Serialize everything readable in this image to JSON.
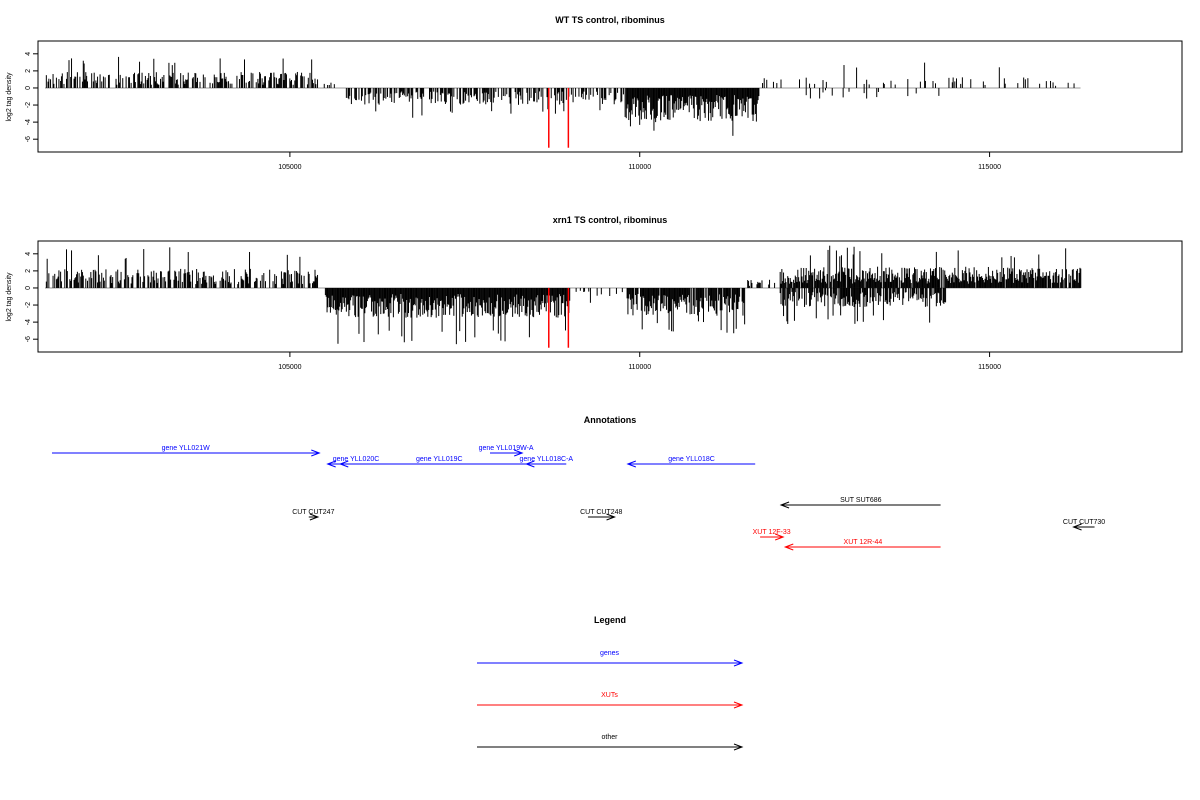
{
  "chart_data": [
    {
      "type": "bar",
      "title": "WT TS control, ribominus",
      "ylabel": "log2 tag density",
      "xlim": [
        101400,
        117750
      ],
      "ylim": [
        -7.5,
        5.5
      ],
      "x_ticks": [
        105000,
        110000,
        115000
      ],
      "y_ticks": [
        4,
        2,
        0,
        -2,
        -4,
        -6
      ],
      "bar_x_range": [
        101500,
        116300
      ],
      "profile": [
        {
          "from": 101500,
          "to": 105400,
          "sign": 1,
          "typical": 1.5,
          "max": 3.7,
          "density": 0.55
        },
        {
          "from": 105400,
          "to": 105800,
          "sign": 1,
          "typical": 0.5,
          "max": 1.0,
          "density": 0.1
        },
        {
          "from": 105800,
          "to": 109800,
          "sign": -1,
          "typical": 1.6,
          "max": 3.5,
          "density": 0.55
        },
        {
          "from": 109800,
          "to": 111700,
          "sign": -1,
          "typical": 3.2,
          "max": 6.0,
          "density": 1.0
        },
        {
          "from": 111700,
          "to": 116300,
          "sign": 1,
          "typical": 1.0,
          "max": 3.2,
          "density": 0.12
        },
        {
          "from": 112300,
          "to": 114300,
          "sign": -1,
          "typical": 1.0,
          "max": 3.5,
          "density": 0.12
        }
      ],
      "highlight_bars": [
        {
          "x": 108700,
          "value": -7.0,
          "color": "#ff0000"
        },
        {
          "x": 108980,
          "value": -7.0,
          "color": "#ff0000"
        }
      ],
      "grid": false
    },
    {
      "type": "bar",
      "title": "xrn1 TS control, ribominus",
      "ylabel": "log2 tag density",
      "xlim": [
        101400,
        117750
      ],
      "ylim": [
        -7.5,
        5.5
      ],
      "x_ticks": [
        105000,
        110000,
        115000
      ],
      "y_ticks": [
        4,
        2,
        0,
        -2,
        -4,
        -6
      ],
      "bar_x_range": [
        101500,
        116300
      ],
      "profile": [
        {
          "from": 101500,
          "to": 105400,
          "sign": 1,
          "typical": 1.8,
          "max": 4.8,
          "density": 0.6
        },
        {
          "from": 105500,
          "to": 109000,
          "sign": -1,
          "typical": 2.8,
          "max": 7.0,
          "density": 1.0
        },
        {
          "from": 109000,
          "to": 109800,
          "sign": -1,
          "typical": 0.8,
          "max": 2.0,
          "density": 0.2
        },
        {
          "from": 109800,
          "to": 111500,
          "sign": -1,
          "typical": 2.6,
          "max": 5.5,
          "density": 0.9
        },
        {
          "from": 111500,
          "to": 112000,
          "sign": 1,
          "typical": 0.8,
          "max": 2.6,
          "density": 0.3
        },
        {
          "from": 112000,
          "to": 114400,
          "sign": -1,
          "typical": 1.8,
          "max": 4.5,
          "density": 0.7
        },
        {
          "from": 112000,
          "to": 116300,
          "sign": 1,
          "typical": 2.0,
          "max": 5.0,
          "density": 0.9
        }
      ],
      "highlight_bars": [
        {
          "x": 108700,
          "value": -7.0,
          "color": "#ff0000"
        },
        {
          "x": 108980,
          "value": -7.0,
          "color": "#ff0000"
        }
      ],
      "grid": false
    }
  ],
  "annotations": {
    "title": "Annotations",
    "features": [
      {
        "label": "gene YLL021W",
        "start": 101600,
        "end": 105420,
        "strand": "+",
        "type": "gene",
        "row": 0
      },
      {
        "label": "gene YLL020C",
        "start": 105540,
        "end": 106350,
        "strand": "-",
        "type": "gene",
        "row": 1
      },
      {
        "label": "gene YLL019C",
        "start": 105720,
        "end": 108550,
        "strand": "-",
        "type": "gene",
        "row": 1
      },
      {
        "label": "gene YLL019W-A",
        "start": 107860,
        "end": 108320,
        "strand": "+",
        "type": "gene",
        "row": 0
      },
      {
        "label": "gene YLL018C-A",
        "start": 108380,
        "end": 108950,
        "strand": "-",
        "type": "gene",
        "row": 1
      },
      {
        "label": "gene YLL018C",
        "start": 109830,
        "end": 111650,
        "strand": "-",
        "type": "gene",
        "row": 1
      },
      {
        "label": "CUT CUT247",
        "start": 105270,
        "end": 105400,
        "strand": "+",
        "type": "other",
        "row": 2
      },
      {
        "label": "CUT CUT248",
        "start": 109260,
        "end": 109640,
        "strand": "+",
        "type": "other",
        "row": 2
      },
      {
        "label": "SUT SUT686",
        "start": 112020,
        "end": 114300,
        "strand": "-",
        "type": "other",
        "row": 3
      },
      {
        "label": "CUT CUT730",
        "start": 116200,
        "end": 116500,
        "strand": "-",
        "type": "other",
        "row": 4
      },
      {
        "label": "XUT 12F-33",
        "start": 111720,
        "end": 112050,
        "strand": "+",
        "type": "xut",
        "row": 5
      },
      {
        "label": "XUT 12R-44",
        "start": 112080,
        "end": 114300,
        "strand": "-",
        "type": "xut",
        "row": 6
      }
    ]
  },
  "legend": {
    "title": "Legend",
    "items": [
      {
        "label": "genes",
        "color": "#0000ff"
      },
      {
        "label": "XUTs",
        "color": "#ff0000"
      },
      {
        "label": "other",
        "color": "#000000"
      }
    ]
  },
  "colors": {
    "gene": "#0000ff",
    "xut": "#ff0000",
    "other": "#000000",
    "zero_line": "#999999"
  }
}
